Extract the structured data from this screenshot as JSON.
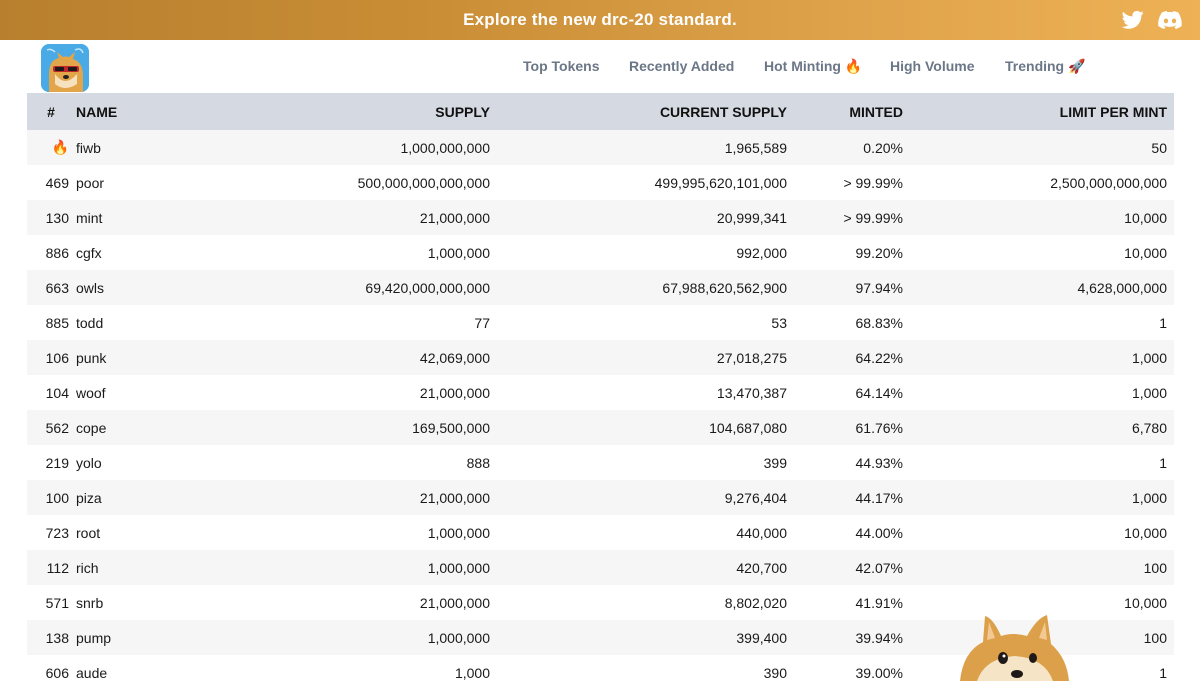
{
  "banner": {
    "text": "Explore the new drc-20 standard."
  },
  "social": {
    "twitter": "twitter-icon",
    "discord": "discord-icon"
  },
  "nav": {
    "items": [
      {
        "label": "Top Tokens"
      },
      {
        "label": "Recently Added"
      },
      {
        "label": "Hot Minting 🔥"
      },
      {
        "label": "High Volume"
      },
      {
        "label": "Trending 🚀"
      }
    ]
  },
  "table": {
    "headers": {
      "num": "#",
      "name": "NAME",
      "supply": "SUPPLY",
      "current": "CURRENT SUPPLY",
      "minted": "MINTED",
      "limit": "LIMIT PER MINT"
    },
    "rows": [
      {
        "num": "🔥",
        "name": "fiwb",
        "supply": "1,000,000,000",
        "current": "1,965,589",
        "minted": "0.20%",
        "limit": "50"
      },
      {
        "num": "469",
        "name": "poor",
        "supply": "500,000,000,000,000",
        "current": "499,995,620,101,000",
        "minted": "> 99.99%",
        "limit": "2,500,000,000,000"
      },
      {
        "num": "130",
        "name": "mint",
        "supply": "21,000,000",
        "current": "20,999,341",
        "minted": "> 99.99%",
        "limit": "10,000"
      },
      {
        "num": "886",
        "name": "cgfx",
        "supply": "1,000,000",
        "current": "992,000",
        "minted": "99.20%",
        "limit": "10,000"
      },
      {
        "num": "663",
        "name": "owls",
        "supply": "69,420,000,000,000",
        "current": "67,988,620,562,900",
        "minted": "97.94%",
        "limit": "4,628,000,000"
      },
      {
        "num": "885",
        "name": "todd",
        "supply": "77",
        "current": "53",
        "minted": "68.83%",
        "limit": "1"
      },
      {
        "num": "106",
        "name": "punk",
        "supply": "42,069,000",
        "current": "27,018,275",
        "minted": "64.22%",
        "limit": "1,000"
      },
      {
        "num": "104",
        "name": "woof",
        "supply": "21,000,000",
        "current": "13,470,387",
        "minted": "64.14%",
        "limit": "1,000"
      },
      {
        "num": "562",
        "name": "cope",
        "supply": "169,500,000",
        "current": "104,687,080",
        "minted": "61.76%",
        "limit": "6,780"
      },
      {
        "num": "219",
        "name": "yolo",
        "supply": "888",
        "current": "399",
        "minted": "44.93%",
        "limit": "1"
      },
      {
        "num": "100",
        "name": "piza",
        "supply": "21,000,000",
        "current": "9,276,404",
        "minted": "44.17%",
        "limit": "1,000"
      },
      {
        "num": "723",
        "name": "root",
        "supply": "1,000,000",
        "current": "440,000",
        "minted": "44.00%",
        "limit": "10,000"
      },
      {
        "num": "112",
        "name": "rich",
        "supply": "1,000,000",
        "current": "420,700",
        "minted": "42.07%",
        "limit": "100"
      },
      {
        "num": "571",
        "name": "snrb",
        "supply": "21,000,000",
        "current": "8,802,020",
        "minted": "41.91%",
        "limit": "10,000"
      },
      {
        "num": "138",
        "name": "pump",
        "supply": "1,000,000",
        "current": "399,400",
        "minted": "39.94%",
        "limit": "100"
      },
      {
        "num": "606",
        "name": "aude",
        "supply": "1,000",
        "current": "390",
        "minted": "39.00%",
        "limit": "1"
      }
    ]
  },
  "colors": {
    "banner_start": "#b87f2e",
    "banner_end": "#eeb155",
    "header_bg": "#d5d9e1",
    "nav_text": "#6b7787"
  }
}
